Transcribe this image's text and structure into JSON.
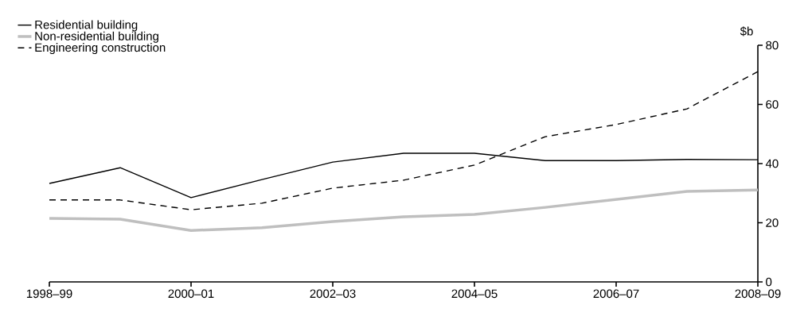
{
  "chart_data": {
    "type": "line",
    "ylabel": "$b",
    "categories": [
      "1998–99",
      null,
      "2000–01",
      null,
      "2002–03",
      null,
      "2004–05",
      null,
      "2006–07",
      null,
      "2008–09"
    ],
    "series": [
      {
        "name": "Residential building",
        "color": "#000000",
        "line_style": "solid",
        "values": [
          33.3,
          38.6,
          28.5,
          34.6,
          40.5,
          43.5,
          43.5,
          41.0,
          41.0,
          41.4,
          41.3
        ]
      },
      {
        "name": "Non-residential building",
        "color": "#bfbfbf",
        "line_style": "solid",
        "values": [
          21.5,
          21.2,
          17.4,
          18.3,
          20.4,
          22.0,
          22.8,
          25.2,
          27.9,
          30.6,
          31.1
        ]
      },
      {
        "name": "Engineering construction",
        "color": "#000000",
        "line_style": "dashed",
        "values": [
          27.7,
          27.7,
          24.4,
          26.6,
          31.7,
          34.4,
          39.5,
          49.1,
          53.2,
          58.5,
          71.1
        ]
      }
    ],
    "ylim": [
      0,
      80
    ],
    "yticks": [
      0,
      20,
      40,
      60,
      80
    ],
    "legend": "top left"
  }
}
